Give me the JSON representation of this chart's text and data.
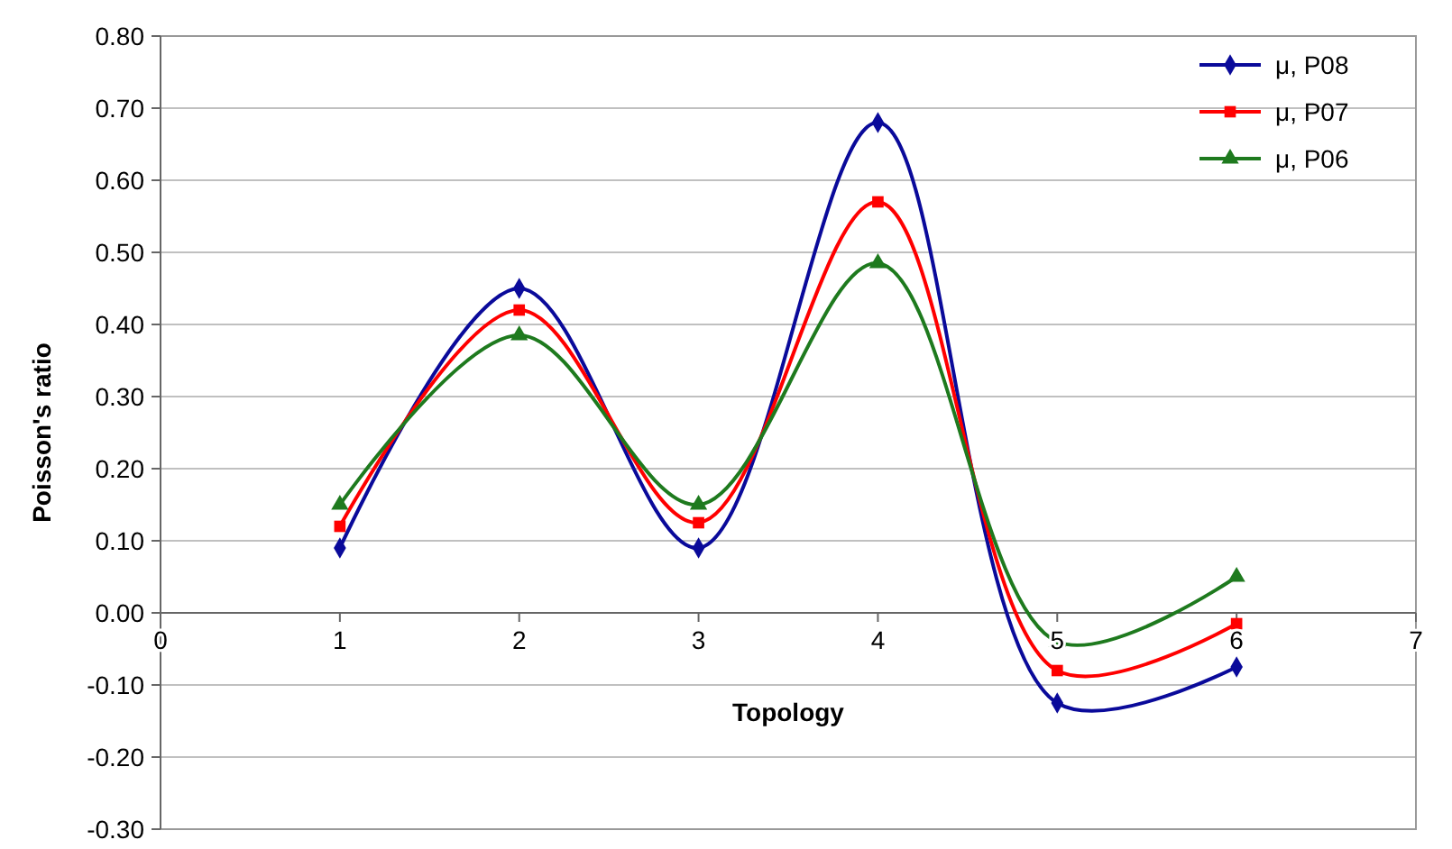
{
  "chart_data": {
    "type": "line",
    "xlabel": "Topology",
    "ylabel": "Poisson's ratio",
    "x": [
      1,
      2,
      3,
      4,
      5,
      6
    ],
    "xlim": [
      0,
      7
    ],
    "xticks": [
      0,
      1,
      2,
      3,
      4,
      5,
      6,
      7
    ],
    "ylim": [
      -0.3,
      0.8
    ],
    "yticks": [
      {
        "value": -0.3,
        "label": "-0.30"
      },
      {
        "value": -0.2,
        "label": "-0.20"
      },
      {
        "value": -0.1,
        "label": "-0.10"
      },
      {
        "value": 0,
        "label": "0.00"
      },
      {
        "value": 0.1,
        "label": "0.10"
      },
      {
        "value": 0.2,
        "label": "0.20"
      },
      {
        "value": 0.3,
        "label": "0.30"
      },
      {
        "value": 0.4,
        "label": "0.40"
      },
      {
        "value": 0.5,
        "label": "0.50"
      },
      {
        "value": 0.6,
        "label": "0.60"
      },
      {
        "value": 0.7,
        "label": "0.70"
      },
      {
        "value": 0.8,
        "label": "0.80"
      }
    ],
    "grid": "y",
    "legend": "top right",
    "series": [
      {
        "name": "μ, P08",
        "color": "#0a0a9a",
        "marker": "diamond",
        "values": [
          0.09,
          0.45,
          0.09,
          0.68,
          -0.125,
          -0.075
        ]
      },
      {
        "name": "μ, P07",
        "color": "#ff0000",
        "marker": "square",
        "values": [
          0.12,
          0.42,
          0.125,
          0.57,
          -0.08,
          -0.015
        ]
      },
      {
        "name": "μ, P06",
        "color": "#1e7a1e",
        "marker": "triangle",
        "values": [
          0.15,
          0.385,
          0.15,
          0.485,
          -0.04,
          0.05
        ]
      }
    ]
  }
}
